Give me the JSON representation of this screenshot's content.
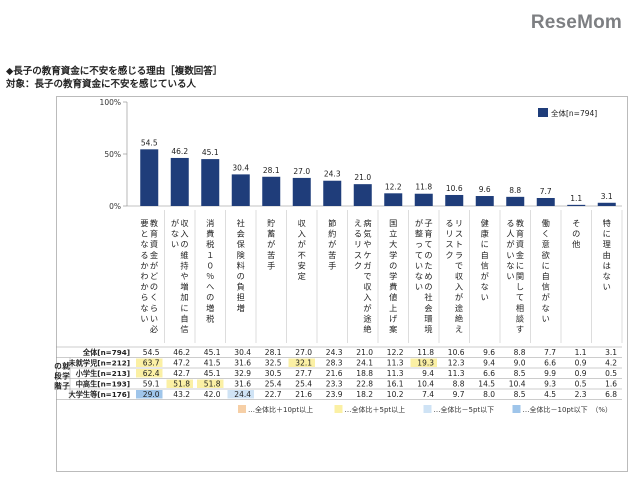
{
  "logo": "ReseMom",
  "header": {
    "title": "◆長子の教育資金に不安を感じる理由［複数回答］",
    "target": "対象：長子の教育資金に不安を感じている人"
  },
  "colors": {
    "bar": "#1f3d7a",
    "plus10": "#f6cfa6",
    "plus5": "#fbf0a4",
    "minus5": "#cfe3f5",
    "minus10": "#9fc5ea"
  },
  "chart_data": {
    "type": "bar",
    "ylim": [
      0,
      100
    ],
    "yticks": [
      "100%",
      "50%",
      "0%"
    ],
    "legend_label": "全体[n=794]",
    "categories": [
      "教育資金がどのくらい必要となるかわからない",
      "収入の維持や増加に自信がない",
      "消費税１０％への増税",
      "社会保険料の負担増",
      "貯蓄が苦手",
      "収入が不安定",
      "節約が苦手",
      "病気やケガで収入が途絶えるリスク",
      "国立大学の学費値上げ案",
      "子育てのための社会環境が整っていない",
      "リストラで収入が途絶えるリスク",
      "健康に自信がない",
      "教育資金に関して相談する人がいない",
      "働く意欲に自信がない",
      "その他",
      "特に理由はない"
    ],
    "values": [
      54.5,
      46.2,
      45.1,
      30.4,
      28.1,
      27.0,
      24.3,
      21.0,
      12.2,
      11.8,
      10.6,
      9.6,
      8.8,
      7.7,
      1.1,
      3.1
    ],
    "table": {
      "group_label": "就学子の段階",
      "rows": [
        {
          "label": "全体[n=794]",
          "values": [
            "54.5",
            "46.2",
            "45.1",
            "30.4",
            "28.1",
            "27.0",
            "24.3",
            "21.0",
            "12.2",
            "11.8",
            "10.6",
            "9.6",
            "8.8",
            "7.7",
            "1.1",
            "3.1"
          ],
          "marks": [
            "",
            "",
            "",
            "",
            "",
            "",
            "",
            "",
            "",
            "",
            "",
            "",
            "",
            "",
            "",
            ""
          ]
        },
        {
          "label": "未就学児[n=212]",
          "values": [
            "63.7",
            "47.2",
            "41.5",
            "31.6",
            "32.5",
            "32.1",
            "28.3",
            "24.1",
            "11.3",
            "19.3",
            "12.3",
            "9.4",
            "9.0",
            "6.6",
            "0.9",
            "4.2"
          ],
          "marks": [
            "p5",
            "",
            "",
            "",
            "",
            "p5",
            "",
            "",
            "",
            "p5",
            "",
            "",
            "",
            "",
            "",
            ""
          ]
        },
        {
          "label": "小学生[n=213]",
          "values": [
            "62.4",
            "42.7",
            "45.1",
            "32.9",
            "30.5",
            "27.7",
            "21.6",
            "18.8",
            "11.3",
            "9.4",
            "11.3",
            "6.6",
            "8.5",
            "9.9",
            "0.9",
            "0.5"
          ],
          "marks": [
            "p5",
            "",
            "",
            "",
            "",
            "",
            "",
            "",
            "",
            "",
            "",
            "",
            "",
            "",
            "",
            ""
          ]
        },
        {
          "label": "中高生[n=193]",
          "values": [
            "59.1",
            "51.8",
            "51.8",
            "31.6",
            "25.4",
            "25.4",
            "23.3",
            "22.8",
            "16.1",
            "10.4",
            "8.8",
            "14.5",
            "10.4",
            "9.3",
            "0.5",
            "1.6"
          ],
          "marks": [
            "",
            "p5",
            "p5",
            "",
            "",
            "",
            "",
            "",
            "",
            "",
            "",
            "",
            "",
            "",
            "",
            ""
          ]
        },
        {
          "label": "大学生等[n=176]",
          "values": [
            "29.0",
            "43.2",
            "42.0",
            "24.4",
            "22.7",
            "21.6",
            "23.9",
            "18.2",
            "10.2",
            "7.4",
            "9.7",
            "8.0",
            "8.5",
            "4.5",
            "2.3",
            "6.8"
          ],
          "marks": [
            "m10",
            "",
            "",
            "m5",
            "",
            "",
            "",
            "",
            "",
            "",
            "",
            "",
            "",
            "",
            "",
            ""
          ]
        }
      ]
    },
    "footer_legend": [
      {
        "label": "…全体比＋10pt以上",
        "color_key": "plus10"
      },
      {
        "label": "…全体比＋5pt以上",
        "color_key": "plus5"
      },
      {
        "label": "…全体比－5pt以下",
        "color_key": "minus5"
      },
      {
        "label": "…全体比－10pt以下",
        "color_key": "minus10"
      }
    ],
    "unit": "（%）"
  }
}
